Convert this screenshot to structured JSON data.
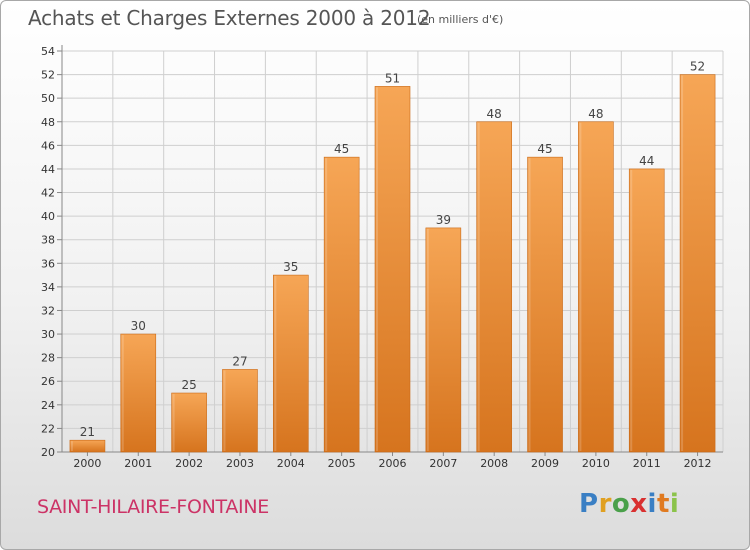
{
  "title": "Achats et Charges Externes 2000 à 2012",
  "unit": "(en milliers d'€)",
  "commune": "SAINT-HILAIRE-FONTAINE",
  "logo": {
    "letters": [
      "P",
      "r",
      "o",
      "x",
      "i",
      "t",
      "i"
    ],
    "colors": [
      "#3a7fc4",
      "#e0a020",
      "#4aa04a",
      "#d93030",
      "#3a7fc4",
      "#e07a20",
      "#8bc34a"
    ]
  },
  "colors": {
    "bar_top": "#f6a656",
    "bar_bottom": "#d6741e",
    "bar_stroke": "#c96a18",
    "grid": "#cfcfcf",
    "commune": "#cc3366"
  },
  "chart_data": {
    "type": "bar",
    "categories": [
      "2000",
      "2001",
      "2002",
      "2003",
      "2004",
      "2005",
      "2006",
      "2007",
      "2008",
      "2009",
      "2010",
      "2011",
      "2012"
    ],
    "values": [
      21,
      30,
      25,
      27,
      35,
      45,
      51,
      39,
      48,
      45,
      48,
      44,
      52
    ],
    "ylim": [
      20,
      54
    ],
    "yticks": [
      20,
      22,
      24,
      26,
      28,
      30,
      32,
      34,
      36,
      38,
      40,
      42,
      44,
      46,
      48,
      50,
      52,
      54
    ],
    "grid": true,
    "data_labels": true
  }
}
